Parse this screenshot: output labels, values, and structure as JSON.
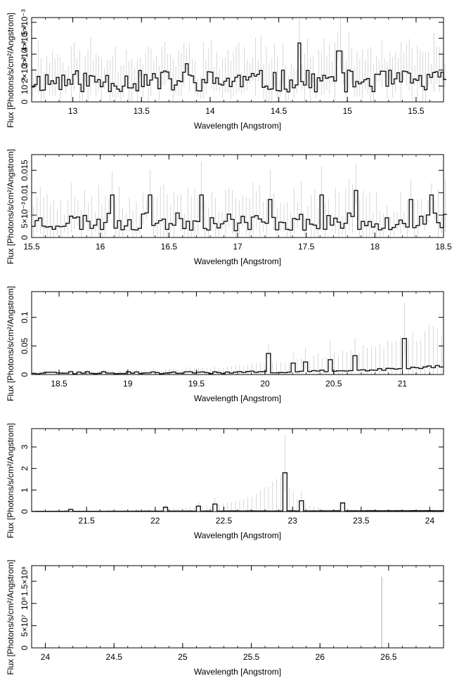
{
  "chart_data": [
    {
      "type": "line",
      "xlabel": "Wavelength [Angstrom]",
      "ylabel": "Flux [Photons/s/cm²/Angstrom]",
      "xlim": [
        12.7,
        15.7
      ],
      "ylim": [
        0,
        0.0053
      ],
      "xticks": [
        13,
        13.5,
        14,
        14.5,
        15,
        15.5
      ],
      "xticklabels": [
        "13",
        "13.5",
        "14",
        "14.5",
        "15",
        "15.5"
      ],
      "yticks": [
        0,
        0.001,
        0.002,
        0.003,
        0.004,
        0.005
      ],
      "yticklabels": [
        "0",
        "10⁻³",
        "2×10⁻³",
        "3×10⁻³",
        "4×10⁻³",
        "5×10⁻³"
      ],
      "seed": 11,
      "baseline": 0.0013,
      "noise": 0.0007,
      "errTop": 0.0025,
      "bin": 0.02,
      "peaks": [
        [
          14.64,
          0.0037
        ],
        [
          14.93,
          0.0032
        ],
        [
          13.82,
          0.0024
        ]
      ]
    },
    {
      "type": "line",
      "xlabel": "Wavelength [Angstrom]",
      "ylabel": "Flux [Photons/s/cm²/Angstrom]",
      "xlim": [
        15.5,
        18.5
      ],
      "ylim": [
        0,
        0.0185
      ],
      "xticks": [
        15.5,
        16,
        16.5,
        17,
        17.5,
        18,
        18.5
      ],
      "xticklabels": [
        "15.5",
        "16",
        "16.5",
        "17",
        "17.5",
        "18",
        "18.5"
      ],
      "yticks": [
        0,
        0.005,
        0.01,
        0.015
      ],
      "yticklabels": [
        "0",
        "5×10⁻³",
        "0.01",
        "0.015"
      ],
      "seed": 23,
      "baseline": 0.0035,
      "noise": 0.002,
      "errTop": 0.008,
      "bin": 0.025,
      "peaks": [
        [
          16.08,
          0.0095
        ],
        [
          16.35,
          0.0095
        ],
        [
          16.73,
          0.0095
        ],
        [
          17.22,
          0.0085
        ],
        [
          17.6,
          0.0095
        ],
        [
          17.85,
          0.0105
        ],
        [
          18.25,
          0.0085
        ],
        [
          18.4,
          0.0095
        ]
      ]
    },
    {
      "type": "line",
      "xlabel": "Wavelength [Angstrom]",
      "ylabel": "Flux [Photons/s/cm²/Angstrom]",
      "xlim": [
        18.3,
        21.3
      ],
      "ylim": [
        0,
        0.145
      ],
      "xticks": [
        18.5,
        19,
        19.5,
        20,
        20.5,
        21
      ],
      "xticklabels": [
        "18.5",
        "19",
        "19.5",
        "20",
        "20.5",
        "21"
      ],
      "yticks": [
        0,
        0.05,
        0.1
      ],
      "yticklabels": [
        "0",
        "0.05",
        "0.1"
      ],
      "seed": 37,
      "baseline": 0.003,
      "noise": 0.002,
      "errTop": 0.02,
      "bin": 0.03,
      "peaks": [
        [
          20.01,
          0.037
        ],
        [
          20.18,
          0.02
        ],
        [
          20.29,
          0.022
        ],
        [
          20.45,
          0.026
        ],
        [
          20.65,
          0.033
        ],
        [
          21.0,
          0.063
        ]
      ]
    },
    {
      "type": "line",
      "xlabel": "Wavelength [Angstrom]",
      "ylabel": "Flux [Photons/s/cm²/Angstrom]",
      "xlim": [
        21.1,
        24.1
      ],
      "ylim": [
        0,
        3.85
      ],
      "xticks": [
        21.5,
        22,
        22.5,
        23,
        23.5,
        24
      ],
      "xticklabels": [
        "21.5",
        "22",
        "22.5",
        "23",
        "23.5",
        "24"
      ],
      "yticks": [
        0,
        1,
        2,
        3
      ],
      "yticklabels": [
        "0",
        "1",
        "2",
        "3"
      ],
      "seed": 51,
      "baseline": 0.01,
      "noise": 0.005,
      "errTop": 0.2,
      "bin": 0.03,
      "peaks": [
        [
          21.38,
          0.1
        ],
        [
          22.07,
          0.2
        ],
        [
          22.3,
          0.25
        ],
        [
          22.43,
          0.35
        ],
        [
          22.93,
          1.8
        ],
        [
          23.04,
          0.5
        ],
        [
          23.34,
          0.4
        ]
      ]
    },
    {
      "type": "line",
      "xlabel": "Wavelength [Angstrom]",
      "ylabel": "Flux [Photons/s/cm²/Angstrom]",
      "xlim": [
        23.9,
        26.9
      ],
      "ylim": [
        0,
        185000000.0
      ],
      "xticks": [
        24,
        24.5,
        25,
        25.5,
        26,
        26.5
      ],
      "xticklabels": [
        "24",
        "24.5",
        "25",
        "25.5",
        "26",
        "26.5"
      ],
      "yticks": [
        0,
        50000000.0,
        100000000.0,
        150000000.0
      ],
      "yticklabels": [
        "0",
        "5×10⁷",
        "10⁸",
        "1.5×10⁸"
      ],
      "seed": 67,
      "baseline": 0,
      "noise": 0,
      "errTop": 0,
      "bin": 0.05,
      "peaks": [],
      "spike": [
        26.45,
        160000000.0
      ]
    }
  ]
}
